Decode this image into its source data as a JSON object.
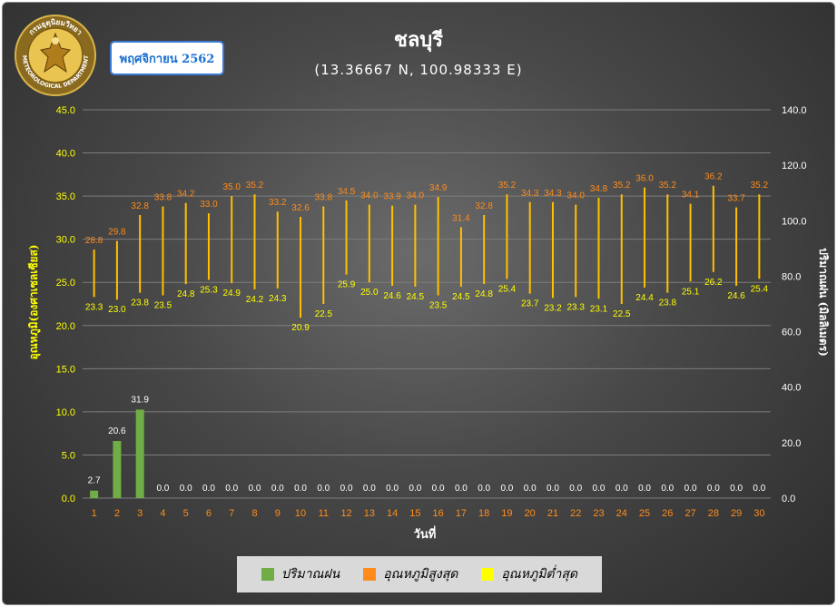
{
  "badge": {
    "month": "พฤศจิกายน 2562"
  },
  "logo": {
    "top_text": "กรมอุตุนิยมวิทยา",
    "bottom_text": "METEOROLOGICAL DEPARTMENT"
  },
  "colors": {
    "rain": "#70ad47",
    "tmax": "#ff8c1a",
    "tmin": "#ffff00",
    "range_line": "#ffc000"
  },
  "chart_data": {
    "type": "bar",
    "title": "ชลบุรี",
    "subtitle": "(13.36667 N, 100.98333 E)",
    "xlabel": "วันที่",
    "ylabel": "อุณหภูมิ(องศาเซลเซียส)",
    "y2label": "ปริมาณฝน (มิลลิเมตร)",
    "ylim": [
      0,
      45
    ],
    "y2lim": [
      0,
      140
    ],
    "yticks": [
      "0.0",
      "5.0",
      "10.0",
      "15.0",
      "20.0",
      "25.0",
      "30.0",
      "35.0",
      "40.0",
      "45.0"
    ],
    "y2ticks": [
      "0.0",
      "20.0",
      "40.0",
      "60.0",
      "80.0",
      "100.0",
      "120.0",
      "140.0"
    ],
    "grid": true,
    "legend_position": "bottom",
    "categories": [
      "1",
      "2",
      "3",
      "4",
      "5",
      "6",
      "7",
      "8",
      "9",
      "10",
      "11",
      "12",
      "13",
      "14",
      "15",
      "16",
      "17",
      "18",
      "19",
      "20",
      "21",
      "22",
      "23",
      "24",
      "25",
      "26",
      "27",
      "28",
      "29",
      "30"
    ],
    "series": [
      {
        "name": "ปริมาณฝน",
        "type": "bar",
        "axis": "right",
        "values": [
          2.7,
          20.6,
          31.9,
          0.0,
          0.0,
          0.0,
          0.0,
          0.0,
          0.0,
          0.0,
          0.0,
          0.0,
          0.0,
          0.0,
          0.0,
          0.0,
          0.0,
          0.0,
          0.0,
          0.0,
          0.0,
          0.0,
          0.0,
          0.0,
          0.0,
          0.0,
          0.0,
          0.0,
          0.0,
          0.0
        ],
        "labels": [
          "2.7",
          "20.6",
          "31.9",
          "0.0",
          "0.0",
          "0.0",
          "0.0",
          "0.0",
          "0.0",
          "0.0",
          "0.0",
          "0.0",
          "0.0",
          "0.0",
          "0.0",
          "0.0",
          "0.0",
          "0.0",
          "0.0",
          "0.0",
          "0.0",
          "0.0",
          "0.0",
          "0.0",
          "0.0",
          "0.0",
          "0.0",
          "0.0",
          "0.0",
          "0.0"
        ]
      },
      {
        "name": "อุณหภูมิสูงสุด",
        "type": "marker",
        "axis": "left",
        "values": [
          28.8,
          29.8,
          32.8,
          33.8,
          34.2,
          33.0,
          35.0,
          35.2,
          33.2,
          32.6,
          33.8,
          34.5,
          34.0,
          33.9,
          34.0,
          34.9,
          31.4,
          32.8,
          35.2,
          34.3,
          34.3,
          34.0,
          34.8,
          35.2,
          36.0,
          35.2,
          34.1,
          36.2,
          33.7,
          35.2
        ],
        "labels": [
          "28.8",
          "29.8",
          "32.8",
          "33.8",
          "34.2",
          "33.0",
          "35.0",
          "35.2",
          "33.2",
          "32.6",
          "33.8",
          "34.5",
          "34.0",
          "33.9",
          "34.0",
          "34.9",
          "31.4",
          "32.8",
          "35.2",
          "34.3",
          "34.3",
          "34.0",
          "34.8",
          "35.2",
          "36.0",
          "35.2",
          "34.1",
          "36.2",
          "33.7",
          "35.2"
        ]
      },
      {
        "name": "อุณหภูมิต่ำสุด",
        "type": "marker",
        "axis": "left",
        "values": [
          23.3,
          23.0,
          23.8,
          23.5,
          24.8,
          25.3,
          24.9,
          24.2,
          24.3,
          20.9,
          22.5,
          25.9,
          25.0,
          24.6,
          24.5,
          23.5,
          24.5,
          24.8,
          25.4,
          23.7,
          23.2,
          23.3,
          23.1,
          22.5,
          24.4,
          23.8,
          25.1,
          26.2,
          24.6,
          25.4
        ],
        "labels": [
          "23.3",
          "23.0",
          "23.8",
          "23.5",
          "24.8",
          "25.3",
          "24.9",
          "24.2",
          "24.3",
          "20.9",
          "22.5",
          "25.9",
          "25.0",
          "24.6",
          "24.5",
          "23.5",
          "24.5",
          "24.8",
          "25.4",
          "23.7",
          "23.2",
          "23.3",
          "23.1",
          "22.5",
          "24.4",
          "23.8",
          "25.1",
          "26.2",
          "24.6",
          "25.4"
        ]
      }
    ]
  }
}
